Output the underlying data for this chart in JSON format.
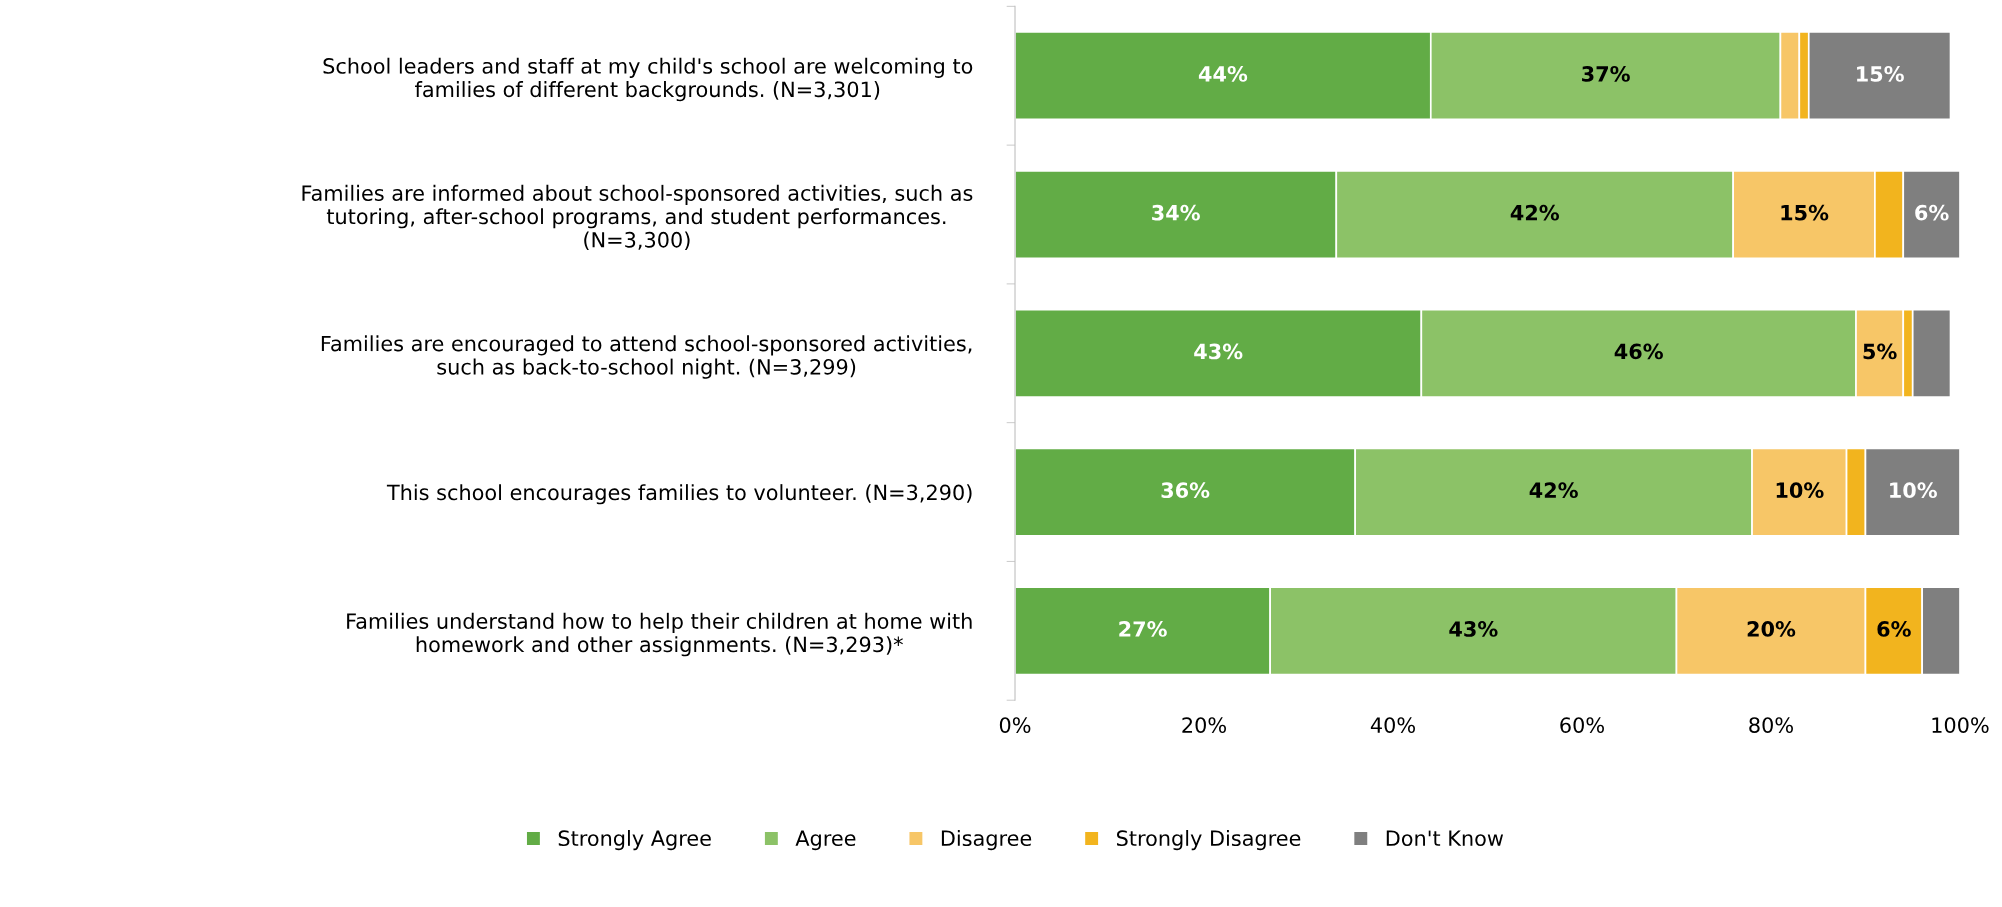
{
  "chart_data": {
    "type": "bar",
    "orientation": "horizontal",
    "stacked": true,
    "categories": [
      "School leaders and staff at my child's school are welcoming to\nfamilies of different backgrounds. (N=3,301)",
      "Families are informed about school-sponsored activities, such as\ntutoring, after-school programs, and student performances.\n(N=3,300)",
      "Families are encouraged to attend school-sponsored activities,\nsuch as back-to-school night. (N=3,299)",
      "This school encourages families to volunteer. (N=3,290)",
      "Families understand how to help their children at home with\nhomework and other assignments. (N=3,293)*"
    ],
    "series": [
      {
        "name": "Strongly Agree",
        "color": "#62ac46",
        "values": [
          44,
          34,
          43,
          36,
          27
        ],
        "value_labels": [
          "44%",
          "34%",
          "43%",
          "36%",
          "27%"
        ]
      },
      {
        "name": "Agree",
        "color": "#8cc267",
        "values": [
          37,
          42,
          46,
          42,
          43
        ],
        "value_labels": [
          "37%",
          "42%",
          "46%",
          "42%",
          "43%"
        ]
      },
      {
        "name": "Disagree",
        "color": "#f7c667",
        "values": [
          2,
          15,
          5,
          10,
          20
        ],
        "value_labels": [
          null,
          "15%",
          "5%",
          "10%",
          "20%"
        ]
      },
      {
        "name": "Strongly Disagree",
        "color": "#f2b41e",
        "values": [
          1,
          3,
          1,
          2,
          6
        ],
        "value_labels": [
          null,
          null,
          null,
          null,
          "6%"
        ]
      },
      {
        "name": "Don't Know",
        "color": "#7f7f7f",
        "values": [
          15,
          6,
          4,
          10,
          4
        ],
        "value_labels": [
          "15%",
          "6%",
          null,
          "10%",
          null
        ]
      }
    ],
    "xlim": [
      0,
      100
    ],
    "xticks": [
      {
        "value": 0,
        "label": "0%"
      },
      {
        "value": 20,
        "label": "20%"
      },
      {
        "value": 40,
        "label": "40%"
      },
      {
        "value": 60,
        "label": "60%"
      },
      {
        "value": 80,
        "label": "80%"
      },
      {
        "value": 100,
        "label": "100%"
      }
    ],
    "grid": false,
    "legend": "bottom"
  }
}
